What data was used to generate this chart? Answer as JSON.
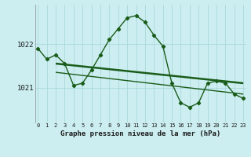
{
  "title": "Graphe pression niveau de la mer (hPa)",
  "background_color": "#cceef0",
  "grid_color": "#aad8dc",
  "line_color": "#1a5c1a",
  "x_hours": [
    0,
    1,
    2,
    3,
    4,
    5,
    6,
    7,
    8,
    9,
    10,
    11,
    12,
    13,
    14,
    15,
    16,
    17,
    18,
    19,
    20,
    21,
    22,
    23
  ],
  "pressure_main": [
    1021.9,
    1021.65,
    1021.75,
    1021.55,
    1021.05,
    1021.1,
    1021.4,
    1021.75,
    1022.1,
    1022.35,
    1022.6,
    1022.65,
    1022.5,
    1022.2,
    1021.95,
    1021.1,
    1020.65,
    1020.55,
    1020.65,
    1021.1,
    1021.15,
    1021.1,
    1020.85,
    1020.75
  ],
  "trend1_x": [
    2,
    23
  ],
  "trend1_y": [
    1021.55,
    1021.1
  ],
  "trend2_x": [
    2,
    23
  ],
  "trend2_y": [
    1021.35,
    1020.85
  ],
  "ytick_positions": [
    1021,
    1022
  ],
  "ytick_labels": [
    "1021",
    "1022"
  ],
  "ylim": [
    1020.2,
    1022.9
  ],
  "xlim": [
    -0.3,
    23.3
  ]
}
